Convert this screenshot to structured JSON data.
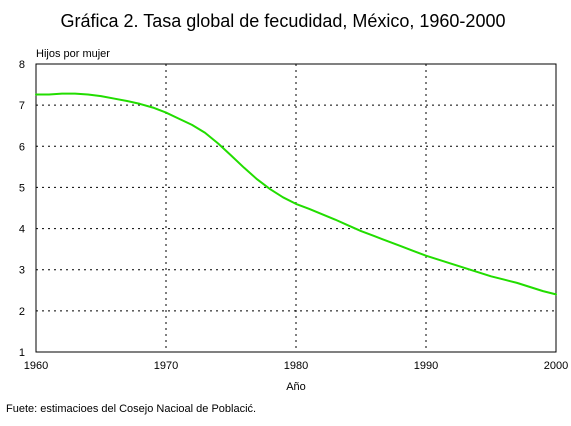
{
  "chart_data": {
    "type": "line",
    "title": "Gráfica 2. Tasa global de fecudidad, México, 1960-2000",
    "ylabel": "Hijos por mujer",
    "xlabel": "Año",
    "source": "Fuete: estimacioes del Cosejo Nacioal de Poblacić.",
    "xlim": [
      1960,
      2000
    ],
    "ylim": [
      1,
      8
    ],
    "x_ticks": [
      "1960",
      "1970",
      "1980",
      "1990",
      "2000"
    ],
    "x_tick_values": [
      1960,
      1970,
      1980,
      1990,
      2000
    ],
    "y_ticks": [
      "1",
      "2",
      "3",
      "4",
      "5",
      "6",
      "7",
      "8"
    ],
    "y_tick_values": [
      1,
      2,
      3,
      4,
      5,
      6,
      7,
      8
    ],
    "grid": "dotted",
    "series": [
      {
        "color": "#22dd00",
        "x": [
          1960,
          1961,
          1962,
          1963,
          1964,
          1965,
          1966,
          1967,
          1968,
          1969,
          1970,
          1971,
          1972,
          1973,
          1974,
          1975,
          1976,
          1977,
          1978,
          1979,
          1980,
          1981,
          1982,
          1983,
          1984,
          1985,
          1986,
          1987,
          1988,
          1989,
          1990,
          1991,
          1992,
          1993,
          1994,
          1995,
          1996,
          1997,
          1998,
          1999,
          2000
        ],
        "values": [
          7.26,
          7.26,
          7.28,
          7.28,
          7.26,
          7.22,
          7.16,
          7.1,
          7.03,
          6.94,
          6.82,
          6.67,
          6.52,
          6.33,
          6.07,
          5.78,
          5.48,
          5.2,
          4.96,
          4.76,
          4.6,
          4.48,
          4.35,
          4.22,
          4.08,
          3.94,
          3.82,
          3.7,
          3.58,
          3.46,
          3.34,
          3.24,
          3.14,
          3.04,
          2.94,
          2.84,
          2.76,
          2.68,
          2.58,
          2.48,
          2.4
        ]
      }
    ]
  }
}
